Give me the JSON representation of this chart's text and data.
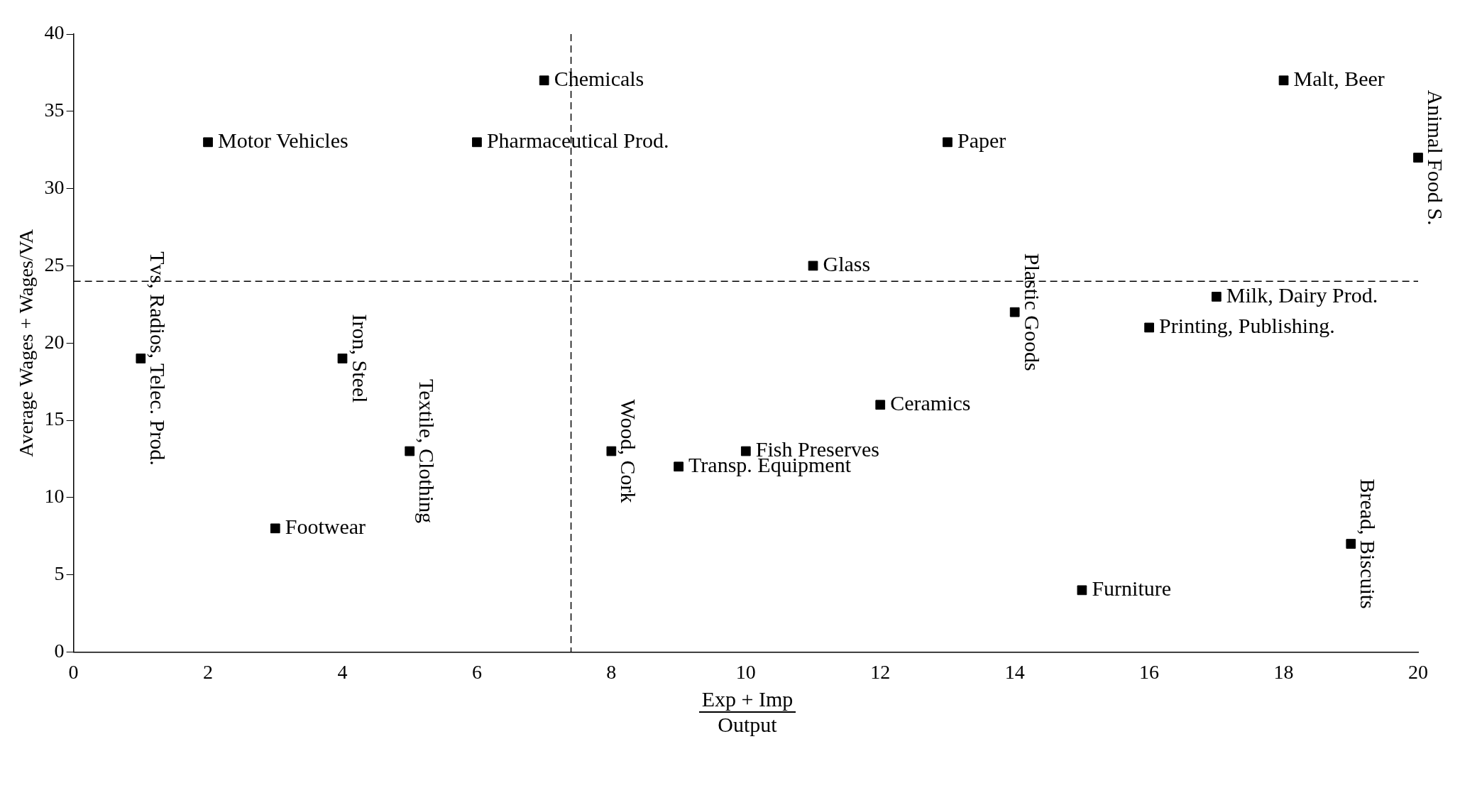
{
  "chart_data": {
    "type": "scatter",
    "xlabel": "Exp + Imp\nOutput",
    "ylabel": "Average Wages + Wages/VA",
    "xlim": [
      0,
      20
    ],
    "xticks": [
      0,
      2,
      4,
      6,
      8,
      10,
      12,
      14,
      16,
      18,
      20
    ],
    "ylim": [
      0,
      40
    ],
    "yticks": [
      0,
      5,
      10,
      15,
      20,
      25,
      30,
      35,
      40
    ],
    "grid": false,
    "legend": false,
    "marker": "square",
    "series": [
      {
        "color": "#000000",
        "x": [
          1,
          2,
          3,
          4,
          5,
          6,
          7,
          8,
          9,
          10,
          11,
          12,
          13,
          14,
          15,
          16,
          17,
          18,
          19,
          20
        ],
        "values": [
          19,
          33,
          8,
          19,
          13,
          33,
          37,
          13,
          12,
          13,
          25,
          16,
          33,
          22,
          4,
          21,
          23,
          37,
          7,
          32
        ]
      }
    ],
    "annotations": [
      {
        "text": "Tvs, Radios, Telec. Prod.",
        "x": 1,
        "y": 19
      },
      {
        "text": "Motor Vehicles",
        "x": 2,
        "y": 33
      },
      {
        "text": "Footwear",
        "x": 3,
        "y": 8
      },
      {
        "text": "Iron, Steel",
        "x": 4,
        "y": 19
      },
      {
        "text": "Textile, Clothing",
        "x": 5,
        "y": 13
      },
      {
        "text": "Pharmaceutical Prod.",
        "x": 6,
        "y": 33
      },
      {
        "text": "Chemicals",
        "x": 7,
        "y": 37
      },
      {
        "text": "Wood, Cork",
        "x": 8,
        "y": 13
      },
      {
        "text": "Transp. Equipment",
        "x": 9,
        "y": 12
      },
      {
        "text": "Fish Preserves",
        "x": 10,
        "y": 13
      },
      {
        "text": "Glass",
        "x": 11,
        "y": 25
      },
      {
        "text": "Ceramics",
        "x": 12,
        "y": 16
      },
      {
        "text": "Paper",
        "x": 13,
        "y": 33
      },
      {
        "text": "Plastic Goods",
        "x": 14,
        "y": 22
      },
      {
        "text": "Furniture",
        "x": 15,
        "y": 4
      },
      {
        "text": "Printing, Publishing.",
        "x": 16,
        "y": 21
      },
      {
        "text": "Milk, Dairy Prod.",
        "x": 17,
        "y": 23
      },
      {
        "text": "Malt, Beer",
        "x": 18,
        "y": 37
      },
      {
        "text": "Bread, Biscuits",
        "x": 19,
        "y": 7
      },
      {
        "text": "Animal Food S.",
        "x": 20,
        "y": 32
      }
    ],
    "ref_lines": [
      {
        "axis": "x",
        "value": 7.4,
        "line_style": "dashed",
        "color": "#000000"
      },
      {
        "axis": "y",
        "value": 24,
        "line_style": "dashed",
        "color": "#000000"
      }
    ]
  }
}
